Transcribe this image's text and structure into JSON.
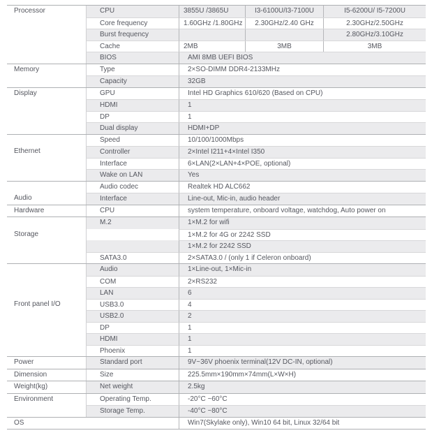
{
  "colors": {
    "text": "#55575f",
    "row_shade": "#ebebed",
    "line_light": "#d7d7d9",
    "line_mid": "#cfd0d2",
    "line_vert": "#b5b6b9",
    "line_dark": "#aeb0b3",
    "background": "#ffffff"
  },
  "table": {
    "groups": [
      {
        "category": "Processor",
        "label_row": 0,
        "rows": [
          {
            "sub": "CPU",
            "cells": [
              "3855U /3865U",
              "I3-6100U/I3-7100U",
              "I5-6200U/ I5-7200U"
            ]
          },
          {
            "sub": "Core frequency",
            "cells": [
              "1.60GHz /1.80GHz",
              "2.30GHz/2.40 GHz",
              "2.30GHz/2.50GHz"
            ]
          },
          {
            "sub": "Burst frequency",
            "cells": [
              "",
              "",
              "2.80GHz/3.10GHz"
            ]
          },
          {
            "sub": "Cache",
            "cells": [
              "2MB",
              "3MB",
              "3MB"
            ]
          },
          {
            "sub": "BIOS",
            "value": "AMI 8MB UEFI BIOS"
          }
        ]
      },
      {
        "category": "Memory",
        "label_row": 0,
        "rows": [
          {
            "sub": "Type",
            "value": "2×SO-DIMM DDR4-2133MHz"
          },
          {
            "sub": "Capacity",
            "value": "32GB"
          }
        ]
      },
      {
        "category": "Display",
        "label_row": 0,
        "rows": [
          {
            "sub": "GPU",
            "value": "Intel HD Graphics 610/620 (Based on CPU)"
          },
          {
            "sub": "HDMI",
            "value": "1"
          },
          {
            "sub": "DP",
            "value": "1"
          },
          {
            "sub": "Dual display",
            "value": "HDMI+DP"
          }
        ]
      },
      {
        "category": "Ethernet",
        "label_row": 1,
        "rows": [
          {
            "sub": "Speed",
            "value": "10/100/1000Mbps"
          },
          {
            "sub": "Controller",
            "value": "2×Intel I211+4×Intel I350"
          },
          {
            "sub": "Interface",
            "value": "6×LAN(2×LAN+4×POE, optional)"
          },
          {
            "sub": "Wake on LAN",
            "value": "Yes"
          }
        ]
      },
      {
        "category": "Audio",
        "label_row": 1,
        "rows": [
          {
            "sub": "Audio codec",
            "value": "Realtek HD ALC662"
          },
          {
            "sub": "Interface",
            "value": "Line-out, Mic-in, audio header"
          }
        ]
      },
      {
        "category": "Hardware",
        "label_row": 0,
        "rows": [
          {
            "sub": "CPU",
            "value": "system temperature, onboard voltage, watchdog, Auto power on"
          }
        ]
      },
      {
        "category": "Storage",
        "label_row": 1,
        "rows": [
          {
            "sub": "M.2",
            "value": "1×M.2 for wifi"
          },
          {
            "sub": "",
            "value": "1×M.2 for 4G or 2242 SSD",
            "merge_sub": true
          },
          {
            "sub": "",
            "value": "1×M.2 for 2242 SSD",
            "merge_sub": true
          },
          {
            "sub": "SATA3.0",
            "value": "2×SATA3.0 / (only 1 if Celeron onboard)"
          }
        ]
      },
      {
        "category": "Front panel I/O",
        "label_row": 3,
        "rows": [
          {
            "sub": "Audio",
            "value": "1×Line-out, 1×Mic-in"
          },
          {
            "sub": "COM",
            "value": "2×RS232"
          },
          {
            "sub": "LAN",
            "value": "6"
          },
          {
            "sub": "USB3.0",
            "value": "4"
          },
          {
            "sub": "USB2.0",
            "value": "2"
          },
          {
            "sub": "DP",
            "value": "1"
          },
          {
            "sub": "HDMI",
            "value": "1"
          },
          {
            "sub": "Phoenix",
            "value": "1"
          }
        ]
      },
      {
        "category": "Power",
        "label_row": 0,
        "rows": [
          {
            "sub": "Standard port",
            "value": "9V~36V phoenix terminal(12V DC-IN, optional)"
          }
        ]
      },
      {
        "category": "Dimension",
        "label_row": 0,
        "rows": [
          {
            "sub": "Size",
            "value": "225.5mm×190mm×74mm(L×W×H)"
          }
        ]
      },
      {
        "category": "Weight(kg)",
        "label_row": 0,
        "rows": [
          {
            "sub": "Net weight",
            "value": "2.5kg"
          }
        ]
      },
      {
        "category": "Environment",
        "label_row": 0,
        "rows": [
          {
            "sub": "Operating Temp.",
            "value": "-20°C ~60°C"
          },
          {
            "sub": "Storage Temp.",
            "value": "-40°C ~80°C"
          }
        ]
      },
      {
        "category": "OS",
        "label_row": 0,
        "rows": [
          {
            "sub": "",
            "value": "Win7(Skylake only), Win10 64 bit, Linux 32/64 bit",
            "no_sub_border": true
          }
        ]
      }
    ]
  }
}
